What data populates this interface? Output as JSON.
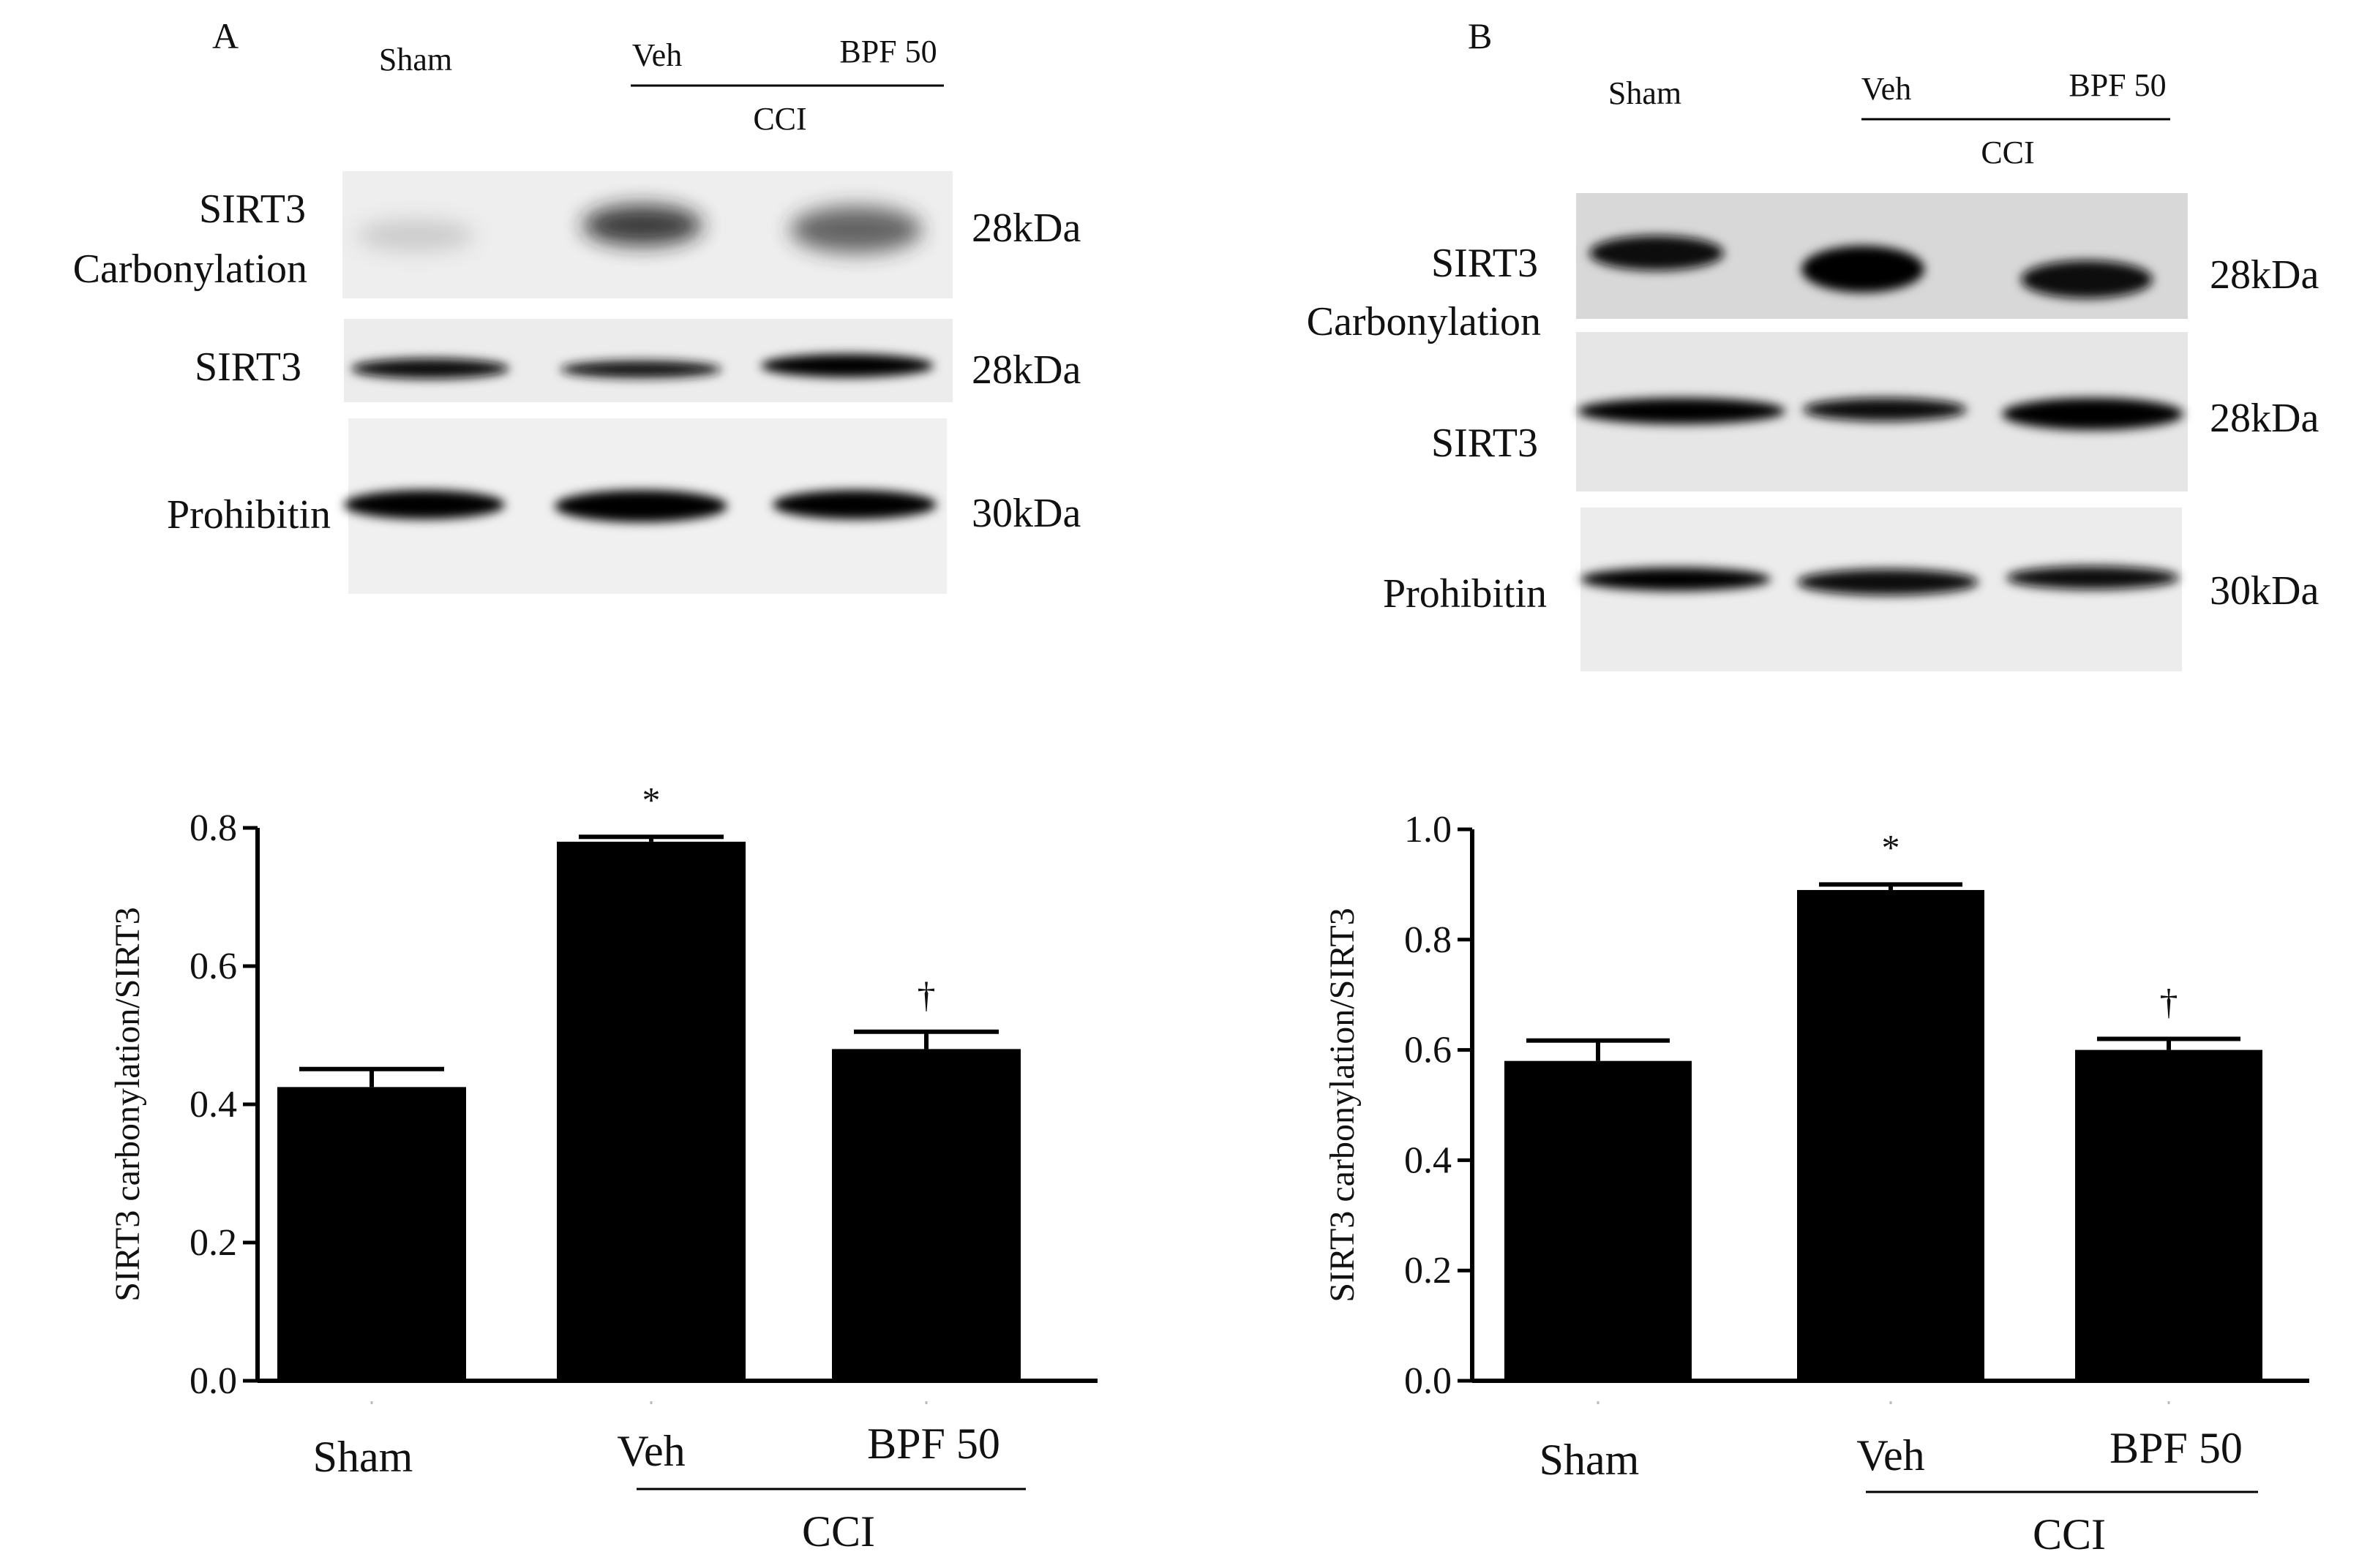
{
  "panels": [
    {
      "letter": "A",
      "blot": {
        "lanes": [
          "Sham",
          "Veh",
          "BPF 50"
        ],
        "group_label": "CCI",
        "rows": [
          {
            "label_lines": [
              "SIRT3",
              "Carbonylation"
            ],
            "kda": "28kDa",
            "intensity": [
              0.25,
              0.75,
              0.65
            ]
          },
          {
            "label_lines": [
              "SIRT3"
            ],
            "kda": "28kDa",
            "intensity": [
              0.9,
              0.8,
              0.95
            ]
          },
          {
            "label_lines": [
              "Prohibitin"
            ],
            "kda": "30kDa",
            "intensity": [
              1.0,
              1.0,
              0.97
            ]
          }
        ]
      }
    },
    {
      "letter": "B",
      "blot": {
        "lanes": [
          "Sham",
          "Veh",
          "BPF 50"
        ],
        "group_label": "CCI",
        "rows": [
          {
            "label_lines": [
              "SIRT3",
              "Carbonylation"
            ],
            "kda": "28kDa",
            "intensity": [
              0.85,
              1.0,
              0.9
            ]
          },
          {
            "label_lines": [
              "SIRT3"
            ],
            "kda": "28kDa",
            "intensity": [
              0.95,
              0.85,
              1.0
            ]
          },
          {
            "label_lines": [
              "Prohibitin"
            ],
            "kda": "30kDa",
            "intensity": [
              0.95,
              0.95,
              0.9
            ]
          }
        ]
      }
    }
  ],
  "chart_data": [
    {
      "type": "bar",
      "categories": [
        "Sham",
        "Veh",
        "BPF 50"
      ],
      "group_label": "CCI",
      "values": [
        0.425,
        0.78,
        0.48
      ],
      "errors": [
        0.026,
        0.007,
        0.025
      ],
      "annotations": [
        "",
        "*",
        "†"
      ],
      "ylabel": "SIRT3 carbonylation/SIRT3",
      "ylim": [
        0,
        0.8
      ],
      "yticks": [
        "0.0",
        "0.2",
        "0.4",
        "0.6",
        "0.8"
      ],
      "bar_color": "#000000"
    },
    {
      "type": "bar",
      "categories": [
        "Sham",
        "Veh",
        "BPF 50"
      ],
      "group_label": "CCI",
      "values": [
        0.58,
        0.89,
        0.6
      ],
      "errors": [
        0.037,
        0.01,
        0.02
      ],
      "annotations": [
        "",
        "*",
        "†"
      ],
      "ylabel": "SIRT3 carbonylation/SIRT3",
      "ylim": [
        0,
        1.0
      ],
      "yticks": [
        "0.0",
        "0.2",
        "0.4",
        "0.6",
        "0.8",
        "1.0"
      ],
      "bar_color": "#000000"
    }
  ]
}
